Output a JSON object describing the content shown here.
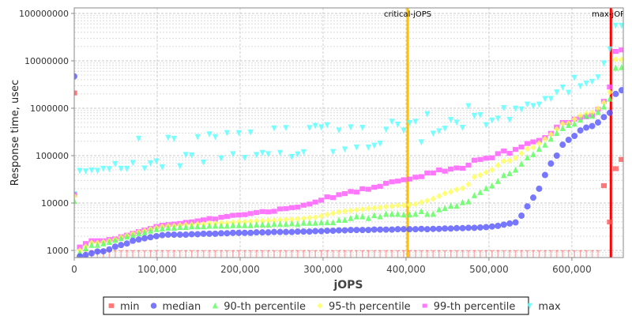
{
  "chart_data": {
    "type": "scatter",
    "title": "",
    "xlabel": "jOPS",
    "ylabel": "Response time, usec",
    "yscale": "log",
    "xlim": [
      0,
      662000
    ],
    "ylim": [
      708,
      130700000
    ],
    "grid": true,
    "legend_position": "bottom",
    "xticks": [
      {
        "value": 0,
        "label": "0"
      },
      {
        "value": 100000,
        "label": "100,000"
      },
      {
        "value": 200000,
        "label": "200,000"
      },
      {
        "value": 300000,
        "label": "300,000"
      },
      {
        "value": 400000,
        "label": "400,000"
      },
      {
        "value": 500000,
        "label": "500,000"
      },
      {
        "value": 600000,
        "label": "600,000"
      }
    ],
    "yticks": [
      {
        "value": 1000,
        "label": "1000"
      },
      {
        "value": 10000,
        "label": "10000"
      },
      {
        "value": 100000,
        "label": "100000"
      },
      {
        "value": 1000000,
        "label": "1000000"
      },
      {
        "value": 10000000,
        "label": "10000000"
      },
      {
        "value": 100000000,
        "label": "100000000"
      }
    ],
    "vlines": [
      {
        "label": "critical-jOPS",
        "value": 402000,
        "color": "#ffc000"
      },
      {
        "label": "max-jOPS",
        "value": 647000,
        "color": "#ff0000"
      }
    ],
    "x": [
      0,
      6700,
      13800,
      20900,
      28000,
      35100,
      42200,
      49300,
      56400,
      63500,
      70600,
      77700,
      84800,
      91900,
      99000,
      106100,
      113200,
      120300,
      127400,
      134500,
      141600,
      148700,
      155800,
      162900,
      170000,
      177100,
      184200,
      191300,
      198400,
      205500,
      212600,
      219700,
      226800,
      233900,
      241000,
      248100,
      255200,
      262300,
      269400,
      276500,
      283600,
      290700,
      297800,
      304900,
      312000,
      319100,
      326200,
      333300,
      340400,
      347500,
      354600,
      361700,
      368800,
      375900,
      383000,
      390100,
      397200,
      404300,
      411400,
      418500,
      425600,
      432700,
      439800,
      446900,
      454000,
      461100,
      468200,
      475300,
      482400,
      489500,
      496600,
      503700,
      510800,
      517900,
      525000,
      532100,
      539200,
      546300,
      553400,
      560500,
      567600,
      574700,
      581800,
      588900,
      596000,
      603100,
      610200,
      617300,
      624400,
      631500,
      638600,
      645700,
      652800,
      659900
    ],
    "series": [
      {
        "name": "min",
        "color": "#ff5555",
        "marker": "square",
        "values": [
          2100000,
          500,
          500,
          500,
          500,
          500,
          500,
          500,
          500,
          500,
          500,
          500,
          500,
          500,
          500,
          500,
          500,
          500,
          500,
          500,
          500,
          500,
          500,
          500,
          500,
          500,
          500,
          500,
          500,
          500,
          500,
          500,
          500,
          500,
          500,
          500,
          500,
          500,
          500,
          500,
          500,
          500,
          500,
          500,
          500,
          500,
          500,
          500,
          500,
          500,
          500,
          500,
          500,
          500,
          500,
          500,
          500,
          500,
          500,
          500,
          500,
          500,
          500,
          500,
          500,
          500,
          500,
          500,
          500,
          500,
          500,
          500,
          500,
          500,
          500,
          500,
          500,
          500,
          500,
          500,
          500,
          500,
          500,
          500,
          500,
          500,
          500,
          500,
          500,
          500,
          23300,
          3980,
          53000,
          83000
        ]
      },
      {
        "name": "median",
        "color": "#5555ff",
        "marker": "circle",
        "values": [
          4700000,
          750,
          800,
          870,
          950,
          960,
          1050,
          1200,
          1300,
          1400,
          1600,
          1700,
          1800,
          1900,
          2000,
          2100,
          2150,
          2150,
          2150,
          2150,
          2200,
          2200,
          2250,
          2250,
          2250,
          2300,
          2300,
          2350,
          2350,
          2350,
          2350,
          2400,
          2400,
          2400,
          2450,
          2450,
          2450,
          2450,
          2500,
          2500,
          2500,
          2550,
          2550,
          2600,
          2600,
          2650,
          2650,
          2700,
          2700,
          2700,
          2700,
          2750,
          2750,
          2750,
          2750,
          2800,
          2800,
          2800,
          2800,
          2850,
          2800,
          2850,
          2850,
          2900,
          2900,
          2950,
          2950,
          3000,
          3000,
          3050,
          3100,
          3200,
          3300,
          3500,
          3700,
          3900,
          5400,
          8500,
          13000,
          20000,
          39000,
          68000,
          100000,
          170000,
          215000,
          260000,
          340000,
          390000,
          420000,
          500000,
          650000,
          800000,
          2000000,
          2400000
        ]
      },
      {
        "name": "90-th percentile",
        "color": "#55ff55",
        "marker": "triangle-up",
        "values": [
          11000,
          890,
          1100,
          1300,
          1300,
          1400,
          1500,
          1650,
          1800,
          1950,
          2100,
          2300,
          2400,
          2600,
          2800,
          2900,
          3000,
          3000,
          3100,
          3100,
          3200,
          3200,
          3200,
          3300,
          3300,
          3300,
          3300,
          3400,
          3400,
          3400,
          3400,
          3500,
          3500,
          3500,
          3600,
          3600,
          3600,
          3700,
          3600,
          3800,
          3800,
          3800,
          3900,
          3900,
          3900,
          4400,
          4400,
          4800,
          5200,
          5200,
          4800,
          5500,
          5200,
          5900,
          5900,
          5900,
          5700,
          5700,
          5900,
          6700,
          5900,
          5900,
          7300,
          7800,
          8700,
          8700,
          10400,
          10800,
          14500,
          16900,
          20500,
          23300,
          29000,
          38700,
          42400,
          50000,
          67000,
          91000,
          107000,
          138000,
          169000,
          226000,
          300000,
          378000,
          440000,
          470000,
          570000,
          690000,
          690000,
          830000,
          1080000,
          1580000,
          7100000,
          7300000
        ]
      },
      {
        "name": "95-th percentile",
        "color": "#ffff55",
        "marker": "diamond",
        "values": [
          14000,
          1000,
          1200,
          1450,
          1450,
          1500,
          1600,
          1700,
          1900,
          2050,
          2250,
          2450,
          2600,
          2800,
          3000,
          3200,
          3300,
          3300,
          3400,
          3500,
          3500,
          3600,
          3600,
          3700,
          3700,
          3800,
          3800,
          3900,
          4000,
          4000,
          4100,
          4200,
          4200,
          4300,
          4300,
          4400,
          4500,
          4500,
          4600,
          4700,
          4900,
          5000,
          5300,
          5700,
          6060,
          6480,
          6720,
          6900,
          7170,
          7350,
          7650,
          7830,
          8030,
          8350,
          8570,
          8920,
          8920,
          9150,
          9500,
          10400,
          11200,
          12300,
          14000,
          15900,
          17300,
          19200,
          20500,
          24800,
          35500,
          38900,
          44300,
          50000,
          62300,
          76500,
          78500,
          89300,
          112000,
          139000,
          149000,
          181000,
          225000,
          281000,
          362000,
          467000,
          480000,
          588000,
          690000,
          764000,
          804000,
          986000,
          1310000,
          2180000,
          10700000,
          10700000
        ]
      },
      {
        "name": "99-th percentile",
        "color": "#ff55ff",
        "marker": "square",
        "values": [
          15000,
          1180,
          1400,
          1600,
          1600,
          1600,
          1700,
          1750,
          1950,
          2100,
          2300,
          2500,
          2700,
          2900,
          3200,
          3400,
          3500,
          3600,
          3700,
          3900,
          4000,
          4200,
          4400,
          4700,
          4600,
          5000,
          5200,
          5500,
          5600,
          5700,
          6000,
          6300,
          6600,
          6500,
          6700,
          7500,
          7600,
          8000,
          8200,
          9000,
          9500,
          10500,
          11500,
          13500,
          13000,
          15000,
          15800,
          17500,
          17000,
          20000,
          19500,
          21500,
          22500,
          26000,
          28000,
          29000,
          31000,
          32000,
          35000,
          36000,
          43000,
          43000,
          50000,
          47000,
          52000,
          55000,
          54000,
          63000,
          80000,
          83000,
          88000,
          90000,
          110000,
          125000,
          112000,
          135000,
          152000,
          180000,
          195000,
          210000,
          240000,
          295000,
          400000,
          500000,
          500000,
          590000,
          640000,
          660000,
          720000,
          950000,
          1400000,
          2800000,
          15800000,
          17000000
        ]
      },
      {
        "name": "max",
        "color": "#55ffff",
        "marker": "triangle-down",
        "values": [
          15500,
          48000,
          47000,
          49000,
          48000,
          53000,
          52000,
          67000,
          53000,
          53000,
          71000,
          228000,
          54000,
          69000,
          76000,
          57000,
          240000,
          228000,
          60000,
          104000,
          102000,
          248000,
          72000,
          283000,
          248000,
          88000,
          300000,
          108000,
          300000,
          90000,
          310000,
          104000,
          115000,
          108000,
          378000,
          115000,
          385000,
          94000,
          107000,
          119000,
          385000,
          425000,
          398000,
          441000,
          120000,
          342000,
          136000,
          398000,
          149000,
          388000,
          149000,
          163000,
          180000,
          355000,
          521000,
          453000,
          342000,
          489000,
          521000,
          192000,
          755000,
          293000,
          329000,
          373000,
          570000,
          501000,
          388000,
          1110000,
          690000,
          717000,
          441000,
          555000,
          607000,
          1010000,
          570000,
          987000,
          950000,
          1200000,
          1120000,
          1200000,
          1580000,
          1580000,
          2180000,
          2750000,
          2130000,
          4410000,
          2930000,
          3330000,
          3640000,
          4520000,
          8900000,
          17500000,
          55500000,
          55500000
        ]
      }
    ]
  }
}
